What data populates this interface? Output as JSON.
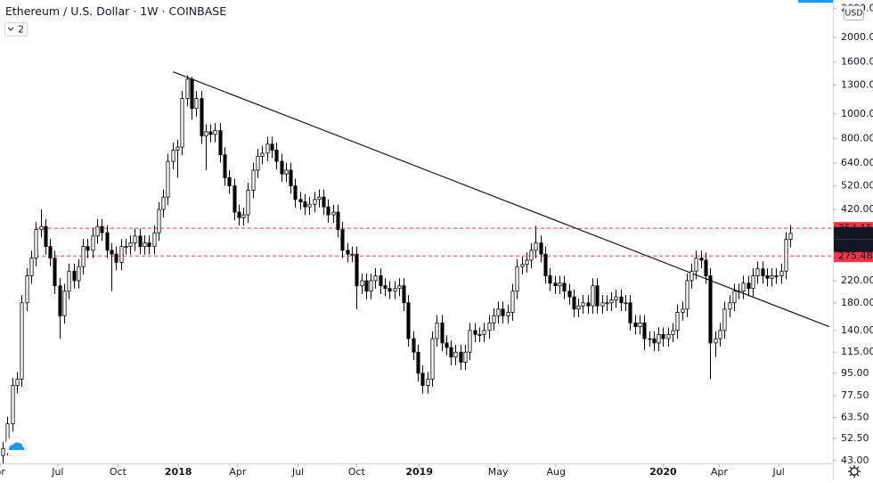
{
  "chart_data": {
    "type": "candlestick",
    "title": "Ethereum / U.S. Dollar",
    "interval": "1W",
    "exchange": "COINBASE",
    "indicator_count": "2",
    "currency": "USD",
    "log_scale": true,
    "up_color": "#ffffff",
    "down_color": "#000000",
    "ylim": [
      41.9,
      2812
    ],
    "xlim": [
      -0.6,
      176
    ],
    "yticks": [
      {
        "value": 43,
        "label": "43.00"
      },
      {
        "value": 52.5,
        "label": "52.50"
      },
      {
        "value": 63.5,
        "label": "63.50"
      },
      {
        "value": 77.5,
        "label": "77.50"
      },
      {
        "value": 95,
        "label": "95.00"
      },
      {
        "value": 115,
        "label": "115.00"
      },
      {
        "value": 140,
        "label": "140.00"
      },
      {
        "value": 180,
        "label": "180.00"
      },
      {
        "value": 220,
        "label": "220.00"
      },
      {
        "value": 420,
        "label": "420.00"
      },
      {
        "value": 520,
        "label": "520.00"
      },
      {
        "value": 640,
        "label": "640.00"
      },
      {
        "value": 800,
        "label": "800.00"
      },
      {
        "value": 1000,
        "label": "1000.00"
      },
      {
        "value": 1300,
        "label": "1300.00"
      },
      {
        "value": 1600,
        "label": "1600.00"
      },
      {
        "value": 2000,
        "label": "2000.00"
      },
      {
        "value": 2600,
        "label": "2600.00"
      }
    ],
    "xticks": [
      {
        "value": -0.56,
        "label": "or"
      },
      {
        "value": 11.65,
        "label": "Jul"
      },
      {
        "value": 24.4,
        "label": "Oct"
      },
      {
        "value": 37.2,
        "label": "2018"
      },
      {
        "value": 49.8,
        "label": "Apr"
      },
      {
        "value": 62.6,
        "label": "Jul"
      },
      {
        "value": 75,
        "label": "Oct"
      },
      {
        "value": 88.3,
        "label": "2019"
      },
      {
        "value": 105,
        "label": "May"
      },
      {
        "value": 117.3,
        "label": "Aug"
      },
      {
        "value": 140,
        "label": "2020"
      },
      {
        "value": 151.9,
        "label": "Apr"
      },
      {
        "value": 164.5,
        "label": "Jul"
      }
    ],
    "levels": [
      354.15,
      275.48
    ],
    "level_color": "#f23645",
    "last_price": 338.21,
    "countdown": "3d 3h",
    "trendline": {
      "from": [
        36.1,
        1466
      ],
      "to": [
        175.2,
        145
      ]
    },
    "candles": [
      [
        45,
        51,
        42,
        48
      ],
      [
        48,
        64,
        45,
        60
      ],
      [
        60,
        91,
        56,
        85
      ],
      [
        85,
        96,
        79,
        90
      ],
      [
        90,
        193,
        84,
        180
      ],
      [
        180,
        246,
        167,
        230
      ],
      [
        230,
        289,
        214,
        270
      ],
      [
        270,
        375,
        251,
        350
      ],
      [
        350,
        420,
        326,
        360
      ],
      [
        360,
        385,
        279,
        300
      ],
      [
        300,
        321,
        251,
        270
      ],
      [
        270,
        289,
        195,
        210
      ],
      [
        210,
        225,
        130,
        160
      ],
      [
        160,
        214,
        149,
        200
      ],
      [
        200,
        257,
        186,
        240
      ],
      [
        240,
        257,
        205,
        220
      ],
      [
        220,
        268,
        205,
        250
      ],
      [
        250,
        321,
        233,
        300
      ],
      [
        300,
        321,
        270,
        290
      ],
      [
        290,
        353,
        270,
        330
      ],
      [
        330,
        385,
        307,
        360
      ],
      [
        360,
        385,
        316,
        340
      ],
      [
        340,
        364,
        270,
        290
      ],
      [
        290,
        310,
        200,
        280
      ],
      [
        280,
        300,
        242,
        260
      ],
      [
        260,
        321,
        242,
        300
      ],
      [
        300,
        321,
        279,
        300
      ],
      [
        300,
        332,
        279,
        310
      ],
      [
        310,
        353,
        288,
        330
      ],
      [
        330,
        353,
        279,
        300
      ],
      [
        300,
        332,
        279,
        310
      ],
      [
        310,
        332,
        279,
        300
      ],
      [
        300,
        364,
        279,
        340
      ],
      [
        340,
        449,
        316,
        420
      ],
      [
        420,
        503,
        391,
        470
      ],
      [
        470,
        696,
        437,
        650
      ],
      [
        650,
        770,
        605,
        720
      ],
      [
        720,
        792,
        560,
        740
      ],
      [
        740,
        1231,
        688,
        1150
      ],
      [
        1150,
        1420,
        1070,
        1370
      ],
      [
        1370,
        1400,
        950,
        1050
      ],
      [
        1050,
        1231,
        977,
        1150
      ],
      [
        1150,
        1231,
        763,
        820
      ],
      [
        820,
        910,
        600,
        850
      ],
      [
        850,
        910,
        772,
        830
      ],
      [
        830,
        920,
        772,
        860
      ],
      [
        860,
        920,
        642,
        690
      ],
      [
        690,
        738,
        521,
        560
      ],
      [
        560,
        599,
        484,
        520
      ],
      [
        520,
        556,
        381,
        410
      ],
      [
        410,
        439,
        363,
        390
      ],
      [
        390,
        428,
        363,
        400
      ],
      [
        400,
        535,
        372,
        500
      ],
      [
        500,
        642,
        465,
        600
      ],
      [
        600,
        728,
        558,
        680
      ],
      [
        680,
        749,
        632,
        700
      ],
      [
        700,
        813,
        651,
        760
      ],
      [
        760,
        813,
        670,
        720
      ],
      [
        720,
        770,
        605,
        650
      ],
      [
        650,
        696,
        539,
        580
      ],
      [
        580,
        642,
        539,
        600
      ],
      [
        600,
        642,
        484,
        520
      ],
      [
        520,
        556,
        428,
        460
      ],
      [
        460,
        492,
        419,
        450
      ],
      [
        450,
        482,
        400,
        430
      ],
      [
        430,
        471,
        400,
        440
      ],
      [
        440,
        492,
        409,
        460
      ],
      [
        460,
        503,
        428,
        470
      ],
      [
        470,
        503,
        400,
        430
      ],
      [
        430,
        460,
        372,
        400
      ],
      [
        400,
        439,
        372,
        410
      ],
      [
        410,
        439,
        326,
        350
      ],
      [
        350,
        375,
        270,
        290
      ],
      [
        290,
        310,
        260,
        280
      ],
      [
        280,
        300,
        260,
        280
      ],
      [
        280,
        300,
        170,
        210
      ],
      [
        210,
        235,
        195,
        220
      ],
      [
        220,
        235,
        186,
        200
      ],
      [
        200,
        235,
        186,
        220
      ],
      [
        220,
        246,
        205,
        230
      ],
      [
        230,
        246,
        195,
        210
      ],
      [
        210,
        225,
        191,
        205
      ],
      [
        205,
        219,
        186,
        200
      ],
      [
        200,
        219,
        186,
        205
      ],
      [
        205,
        225,
        191,
        210
      ],
      [
        210,
        225,
        167,
        180
      ],
      [
        180,
        193,
        121,
        130
      ],
      [
        130,
        139,
        107,
        115
      ],
      [
        115,
        123,
        88,
        95
      ],
      [
        95,
        102,
        79,
        85
      ],
      [
        85,
        96,
        79,
        90
      ],
      [
        90,
        139,
        84,
        130
      ],
      [
        130,
        161,
        121,
        150
      ],
      [
        150,
        161,
        116,
        125
      ],
      [
        125,
        134,
        112,
        120
      ],
      [
        120,
        128,
        102,
        110
      ],
      [
        110,
        123,
        102,
        115
      ],
      [
        115,
        123,
        98,
        105
      ],
      [
        105,
        123,
        98,
        115
      ],
      [
        115,
        150,
        107,
        140
      ],
      [
        140,
        150,
        126,
        135
      ],
      [
        135,
        144,
        126,
        135
      ],
      [
        135,
        150,
        126,
        140
      ],
      [
        140,
        161,
        130,
        150
      ],
      [
        150,
        171,
        140,
        160
      ],
      [
        160,
        182,
        149,
        170
      ],
      [
        170,
        182,
        149,
        160
      ],
      [
        160,
        177,
        149,
        165
      ],
      [
        165,
        214,
        153,
        200
      ],
      [
        200,
        268,
        186,
        250
      ],
      [
        250,
        273,
        233,
        255
      ],
      [
        255,
        284,
        237,
        265
      ],
      [
        265,
        310,
        246,
        290
      ],
      [
        290,
        362,
        270,
        310
      ],
      [
        310,
        332,
        260,
        280
      ],
      [
        280,
        300,
        214,
        230
      ],
      [
        230,
        246,
        200,
        215
      ],
      [
        215,
        230,
        195,
        210
      ],
      [
        210,
        230,
        195,
        215
      ],
      [
        215,
        230,
        186,
        200
      ],
      [
        200,
        214,
        177,
        190
      ],
      [
        190,
        203,
        158,
        170
      ],
      [
        170,
        187,
        158,
        175
      ],
      [
        175,
        193,
        163,
        180
      ],
      [
        180,
        193,
        163,
        175
      ],
      [
        175,
        225,
        163,
        210
      ],
      [
        210,
        225,
        163,
        175
      ],
      [
        175,
        193,
        163,
        180
      ],
      [
        180,
        193,
        167,
        180
      ],
      [
        180,
        198,
        167,
        185
      ],
      [
        185,
        203,
        172,
        190
      ],
      [
        190,
        203,
        167,
        180
      ],
      [
        180,
        193,
        167,
        180
      ],
      [
        180,
        193,
        140,
        150
      ],
      [
        150,
        161,
        135,
        145
      ],
      [
        145,
        161,
        135,
        150
      ],
      [
        150,
        161,
        117,
        130
      ],
      [
        130,
        139,
        121,
        130
      ],
      [
        130,
        139,
        116,
        125
      ],
      [
        125,
        144,
        116,
        135
      ],
      [
        135,
        144,
        121,
        130
      ],
      [
        130,
        144,
        121,
        135
      ],
      [
        135,
        150,
        126,
        140
      ],
      [
        140,
        177,
        130,
        165
      ],
      [
        165,
        182,
        153,
        170
      ],
      [
        170,
        235,
        158,
        220
      ],
      [
        220,
        257,
        205,
        240
      ],
      [
        240,
        289,
        223,
        270
      ],
      [
        270,
        289,
        246,
        265
      ],
      [
        265,
        284,
        214,
        230
      ],
      [
        230,
        246,
        90,
        125
      ],
      [
        125,
        139,
        110,
        130
      ],
      [
        130,
        150,
        121,
        140
      ],
      [
        140,
        182,
        130,
        170
      ],
      [
        170,
        193,
        158,
        180
      ],
      [
        180,
        214,
        167,
        200
      ],
      [
        200,
        214,
        186,
        200
      ],
      [
        200,
        230,
        186,
        215
      ],
      [
        215,
        230,
        191,
        205
      ],
      [
        205,
        246,
        191,
        230
      ],
      [
        230,
        262,
        214,
        245
      ],
      [
        245,
        262,
        214,
        230
      ],
      [
        230,
        246,
        209,
        225
      ],
      [
        225,
        246,
        209,
        230
      ],
      [
        230,
        246,
        214,
        230
      ],
      [
        230,
        257,
        214,
        240
      ],
      [
        240,
        342,
        223,
        320
      ],
      [
        320,
        364,
        298,
        338.21
      ]
    ]
  }
}
